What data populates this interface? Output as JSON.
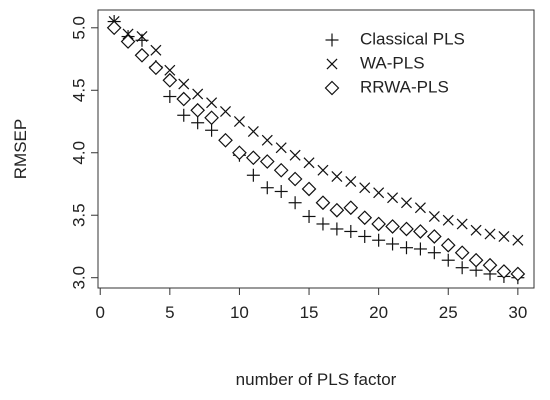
{
  "chart_data": {
    "type": "scatter",
    "xlabel": "number of PLS factor",
    "ylabel": "RMSEP",
    "xlim": [
      0,
      30
    ],
    "ylim": [
      3.0,
      5.0
    ],
    "x_ticks": [
      0,
      5,
      10,
      15,
      20,
      25,
      30
    ],
    "y_ticks": [
      3.0,
      3.5,
      4.0,
      4.5,
      5.0
    ],
    "y_tick_labels": [
      "3.0",
      "3.5",
      "4.0",
      "4.5",
      "5.0"
    ],
    "grid": false,
    "legend_position": "top-right",
    "x": [
      1,
      2,
      3,
      4,
      5,
      6,
      7,
      8,
      9,
      10,
      11,
      12,
      13,
      14,
      15,
      16,
      17,
      18,
      19,
      20,
      21,
      22,
      23,
      24,
      25,
      26,
      27,
      28,
      29,
      30
    ],
    "series": [
      {
        "name": "Classical PLS",
        "marker": "plus",
        "values": [
          5.05,
          4.93,
          4.9,
          4.69,
          4.45,
          4.3,
          4.24,
          4.18,
          4.1,
          3.98,
          3.82,
          3.72,
          3.69,
          3.6,
          3.49,
          3.43,
          3.39,
          3.37,
          3.33,
          3.3,
          3.27,
          3.24,
          3.23,
          3.2,
          3.14,
          3.08,
          3.06,
          3.03,
          3.01,
          3.0
        ]
      },
      {
        "name": "WA-PLS",
        "marker": "cross",
        "values": [
          5.05,
          4.95,
          4.93,
          4.82,
          4.66,
          4.55,
          4.47,
          4.4,
          4.33,
          4.25,
          4.17,
          4.1,
          4.04,
          3.98,
          3.92,
          3.86,
          3.81,
          3.77,
          3.72,
          3.68,
          3.64,
          3.6,
          3.56,
          3.49,
          3.46,
          3.43,
          3.38,
          3.35,
          3.33,
          3.3
        ]
      },
      {
        "name": "RRWA-PLS",
        "marker": "diamond",
        "values": [
          5.0,
          4.89,
          4.78,
          4.68,
          4.58,
          4.43,
          4.34,
          4.28,
          4.1,
          4.0,
          3.96,
          3.93,
          3.86,
          3.79,
          3.71,
          3.6,
          3.54,
          3.56,
          3.48,
          3.43,
          3.41,
          3.39,
          3.37,
          3.33,
          3.26,
          3.2,
          3.14,
          3.1,
          3.05,
          3.03
        ]
      }
    ]
  }
}
